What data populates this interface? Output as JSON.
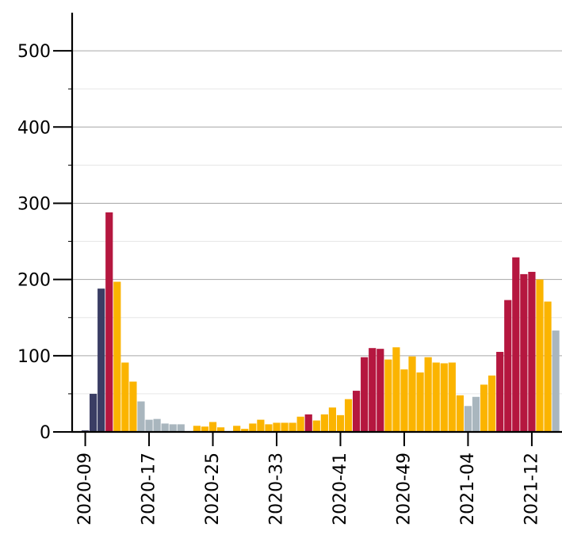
{
  "chart_data": {
    "type": "bar",
    "title": "",
    "xlabel": "",
    "ylabel": "",
    "ylim": [
      0,
      550
    ],
    "yticks": [
      0,
      100,
      200,
      300,
      400,
      500
    ],
    "grid": "horizontal",
    "xtick_labels": [
      "2020-09",
      "2020-17",
      "2020-25",
      "2020-33",
      "2020-41",
      "2020-49",
      "2021-04",
      "2021-12"
    ],
    "xtick_positions": [
      1,
      9,
      17,
      25,
      33,
      41,
      49,
      57
    ],
    "colors": {
      "navy": "#3a3d64",
      "crimson": "#b5173f",
      "amber": "#fbb400",
      "gray": "#a9b6be"
    },
    "bars": [
      {
        "v": 0,
        "c": "navy"
      },
      {
        "v": 2,
        "c": "navy"
      },
      {
        "v": 50,
        "c": "navy"
      },
      {
        "v": 188,
        "c": "navy"
      },
      {
        "v": 288,
        "c": "crimson"
      },
      {
        "v": 197,
        "c": "amber"
      },
      {
        "v": 91,
        "c": "amber"
      },
      {
        "v": 66,
        "c": "amber"
      },
      {
        "v": 40,
        "c": "gray"
      },
      {
        "v": 16,
        "c": "gray"
      },
      {
        "v": 17,
        "c": "gray"
      },
      {
        "v": 11,
        "c": "gray"
      },
      {
        "v": 10,
        "c": "gray"
      },
      {
        "v": 10,
        "c": "gray"
      },
      {
        "v": 0,
        "c": "gray"
      },
      {
        "v": 8,
        "c": "amber"
      },
      {
        "v": 7,
        "c": "amber"
      },
      {
        "v": 13,
        "c": "amber"
      },
      {
        "v": 6,
        "c": "amber"
      },
      {
        "v": 0,
        "c": "amber"
      },
      {
        "v": 8,
        "c": "amber"
      },
      {
        "v": 4,
        "c": "amber"
      },
      {
        "v": 11,
        "c": "amber"
      },
      {
        "v": 16,
        "c": "amber"
      },
      {
        "v": 10,
        "c": "amber"
      },
      {
        "v": 12,
        "c": "amber"
      },
      {
        "v": 12,
        "c": "amber"
      },
      {
        "v": 12,
        "c": "amber"
      },
      {
        "v": 20,
        "c": "amber"
      },
      {
        "v": 23,
        "c": "crimson"
      },
      {
        "v": 15,
        "c": "amber"
      },
      {
        "v": 23,
        "c": "amber"
      },
      {
        "v": 32,
        "c": "amber"
      },
      {
        "v": 22,
        "c": "amber"
      },
      {
        "v": 43,
        "c": "amber"
      },
      {
        "v": 54,
        "c": "crimson"
      },
      {
        "v": 98,
        "c": "crimson"
      },
      {
        "v": 110,
        "c": "crimson"
      },
      {
        "v": 109,
        "c": "crimson"
      },
      {
        "v": 95,
        "c": "amber"
      },
      {
        "v": 111,
        "c": "amber"
      },
      {
        "v": 82,
        "c": "amber"
      },
      {
        "v": 99,
        "c": "amber"
      },
      {
        "v": 78,
        "c": "amber"
      },
      {
        "v": 98,
        "c": "amber"
      },
      {
        "v": 91,
        "c": "amber"
      },
      {
        "v": 90,
        "c": "amber"
      },
      {
        "v": 91,
        "c": "amber"
      },
      {
        "v": 48,
        "c": "amber"
      },
      {
        "v": 34,
        "c": "gray"
      },
      {
        "v": 46,
        "c": "gray"
      },
      {
        "v": 62,
        "c": "amber"
      },
      {
        "v": 74,
        "c": "amber"
      },
      {
        "v": 105,
        "c": "crimson"
      },
      {
        "v": 173,
        "c": "crimson"
      },
      {
        "v": 229,
        "c": "crimson"
      },
      {
        "v": 207,
        "c": "crimson"
      },
      {
        "v": 210,
        "c": "crimson"
      },
      {
        "v": 200,
        "c": "amber"
      },
      {
        "v": 171,
        "c": "amber"
      },
      {
        "v": 133,
        "c": "gray"
      }
    ]
  }
}
